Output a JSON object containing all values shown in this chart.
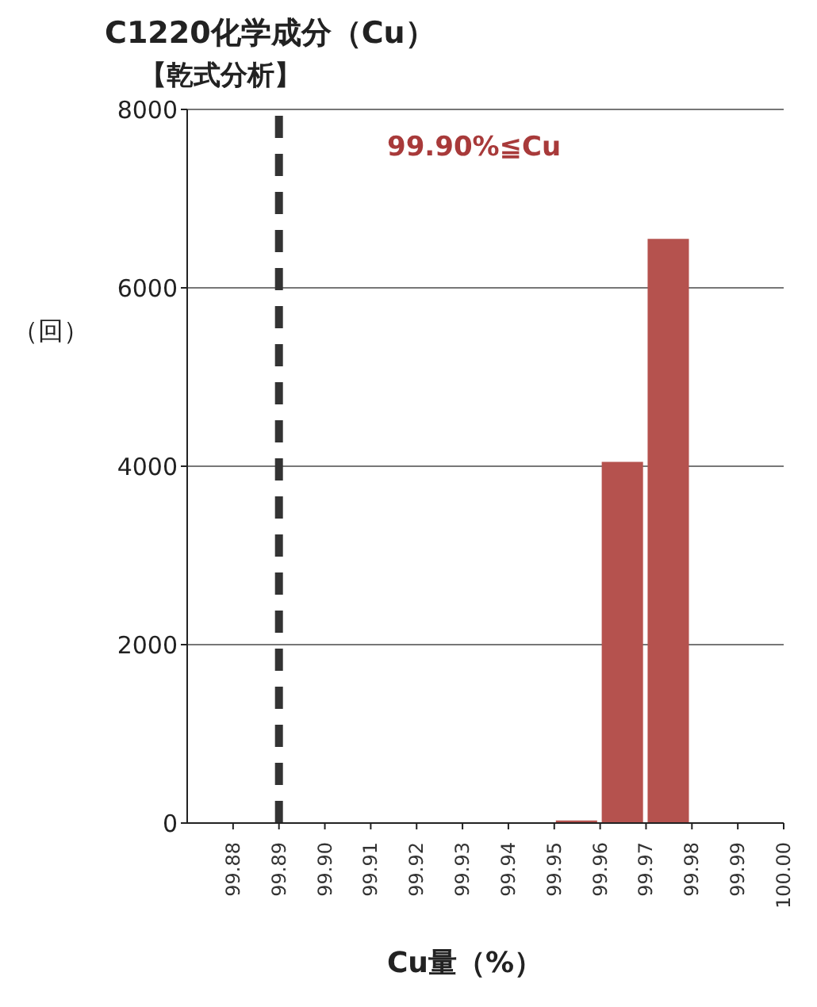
{
  "chart_data": {
    "type": "histogram",
    "title": "C1220化学成分（Cu）",
    "subtitle": "【乾式分析】",
    "xlabel": "Cu量（%）",
    "ylabel": "（回）",
    "bins": [
      99.88,
      99.89,
      99.9,
      99.91,
      99.92,
      99.93,
      99.94,
      99.95,
      99.96,
      99.97,
      99.98,
      99.99,
      100.0
    ],
    "values": [
      0,
      0,
      0,
      0,
      0,
      0,
      0,
      30,
      4050,
      6550,
      0,
      0
    ],
    "color": "#b5524e",
    "xlim": [
      99.87,
      100.0
    ],
    "xticks": [
      {
        "value": 99.88,
        "label": "99.88"
      },
      {
        "value": 99.89,
        "label": "99.89"
      },
      {
        "value": 99.9,
        "label": "99.90"
      },
      {
        "value": 99.91,
        "label": "99.91"
      },
      {
        "value": 99.92,
        "label": "99.92"
      },
      {
        "value": 99.93,
        "label": "99.93"
      },
      {
        "value": 99.94,
        "label": "99.94"
      },
      {
        "value": 99.95,
        "label": "99.95"
      },
      {
        "value": 99.96,
        "label": "99.96"
      },
      {
        "value": 99.97,
        "label": "99.97"
      },
      {
        "value": 99.98,
        "label": "99.98"
      },
      {
        "value": 99.99,
        "label": "99.99"
      },
      {
        "value": 100.0,
        "label": "100.00"
      }
    ],
    "ylim": [
      0,
      8000
    ],
    "yticks": [
      0,
      2000,
      4000,
      6000,
      8000
    ],
    "grid": "y",
    "ref_lines": [
      {
        "axis": "x",
        "value": 99.89,
        "color": "#333333",
        "line_style": "dashed"
      }
    ],
    "annotations": [
      "99.90%≦Cu"
    ],
    "legend": false
  }
}
